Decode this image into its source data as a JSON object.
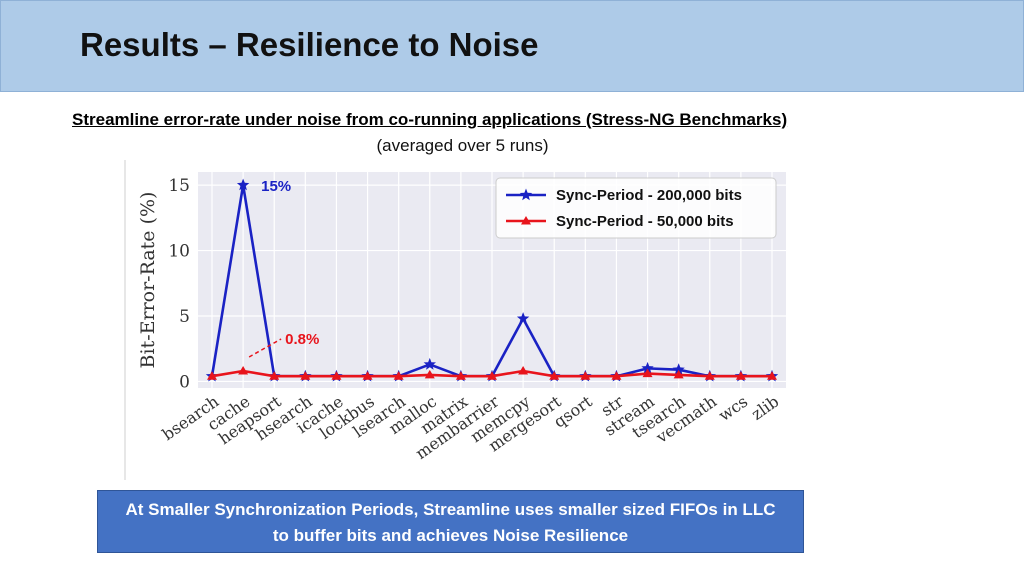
{
  "slide": {
    "title": "Results – Resilience to Noise",
    "subtitle": "Streamline error-rate under noise from co-running applications (Stress-NG Benchmarks)",
    "subtitle_note": "(averaged over 5 runs)",
    "callout_line1": "At Smaller Synchronization Periods, Streamline uses smaller sized FIFOs in LLC",
    "callout_line2": "to buffer bits and achieves Noise Resilience"
  },
  "colors": {
    "title_bar": "#aecbe8",
    "series_blue": "#1a22c4",
    "series_red": "#e8141c",
    "plot_bg": "#eaeaf2",
    "callout_bg": "#4472c4"
  },
  "chart_data": {
    "type": "line",
    "ylabel": "Bit-Error-Rate (%)",
    "xlabel": "",
    "ylim": [
      -0.5,
      16
    ],
    "yticks": [
      0,
      5,
      10,
      15
    ],
    "grid": true,
    "legend_position": "top-right",
    "categories": [
      "bsearch",
      "cache",
      "heapsort",
      "hsearch",
      "icache",
      "lockbus",
      "lsearch",
      "malloc",
      "matrix",
      "membarrier",
      "memcpy",
      "mergesort",
      "qsort",
      "str",
      "stream",
      "tsearch",
      "vecmath",
      "wcs",
      "zlib"
    ],
    "series": [
      {
        "name": "Sync-Period - 200,000 bits",
        "color": "#1a22c4",
        "marker": "star",
        "values": [
          0.4,
          15.0,
          0.4,
          0.4,
          0.4,
          0.4,
          0.4,
          1.3,
          0.4,
          0.4,
          4.8,
          0.4,
          0.4,
          0.4,
          1.0,
          0.9,
          0.4,
          0.4,
          0.4
        ]
      },
      {
        "name": "Sync-Period - 50,000 bits",
        "color": "#e8141c",
        "marker": "triangle",
        "values": [
          0.4,
          0.8,
          0.4,
          0.4,
          0.4,
          0.4,
          0.4,
          0.5,
          0.4,
          0.4,
          0.8,
          0.4,
          0.4,
          0.4,
          0.6,
          0.5,
          0.4,
          0.4,
          0.4
        ]
      }
    ],
    "annotations": [
      {
        "text": "15%",
        "category": "cache",
        "series": 0
      },
      {
        "text": "0.8%",
        "category": "cache",
        "series": 1
      }
    ]
  }
}
